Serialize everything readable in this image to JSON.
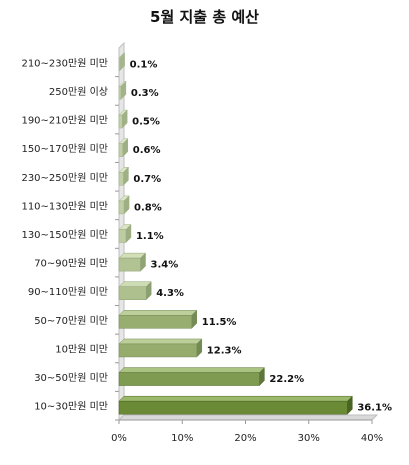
{
  "chart_data": {
    "type": "bar",
    "orientation": "horizontal",
    "title": "5월 지출 총 예산",
    "xlabel": "",
    "ylabel": "",
    "xlim": [
      0,
      40
    ],
    "xticks": [
      "0%",
      "10%",
      "20%",
      "30%",
      "40%"
    ],
    "grid": false,
    "legend": "none",
    "categories": [
      "210~230만원  미만",
      "250만원  이상",
      "190~210만원  미만",
      "150~170만원  미만",
      "230~250만원  미만",
      "110~130만원  미만",
      "130~150만원  미만",
      "70~90만원  미만",
      "90~110만원  미만",
      "50~70만원  미만",
      "10만원  미만",
      "30~50만원  미만",
      "10~30만원  미만"
    ],
    "values": [
      0.1,
      0.3,
      0.5,
      0.6,
      0.7,
      0.8,
      1.1,
      3.4,
      4.3,
      11.5,
      12.3,
      22.2,
      36.1
    ],
    "value_labels": [
      "0.1%",
      "0.3%",
      "0.5%",
      "0.6%",
      "0.7%",
      "0.8%",
      "1.1%",
      "3.4%",
      "4.3%",
      "11.5%",
      "12.3%",
      "22.2%",
      "36.1%"
    ],
    "colors": {
      "bar_light_face": "#c9d6b1",
      "bar_light_top": "#e3ebd3",
      "bar_light_side": "#a8b890",
      "bar_dark_face": "#6b8a36",
      "bar_dark_top": "#9cb86a",
      "bar_dark_side": "#4a6424",
      "axis": "#999999",
      "wall": "#bfbfbf"
    }
  }
}
